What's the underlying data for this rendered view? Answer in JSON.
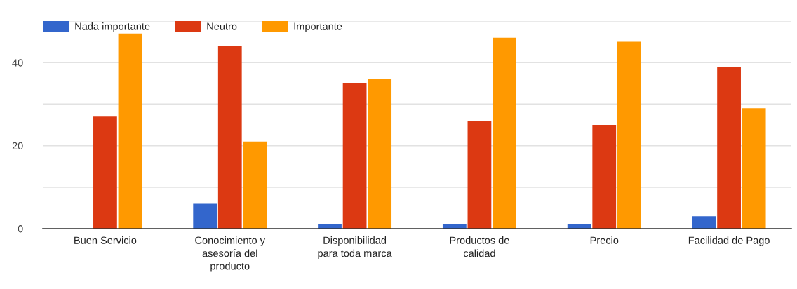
{
  "chart_data": {
    "type": "bar",
    "categories": [
      "Buen Servicio",
      "Conocimiento y\nasesoría del\nproducto",
      "Disponibilidad\npara toda marca",
      "Productos de\ncalidad",
      "Precio",
      "Facilidad de Pago"
    ],
    "series": [
      {
        "name": "Nada importante",
        "color": "#3366cc",
        "values": [
          0,
          6,
          1,
          1,
          1,
          3
        ]
      },
      {
        "name": "Neutro",
        "color": "#dc3912",
        "values": [
          27,
          44,
          35,
          26,
          25,
          39
        ]
      },
      {
        "name": "Importante",
        "color": "#ff9900",
        "values": [
          47,
          21,
          36,
          46,
          45,
          29
        ]
      }
    ],
    "ylim": [
      0,
      50
    ],
    "yticks": [
      0,
      {
        "value": 10,
        "label": null
      },
      20,
      {
        "value": 30,
        "label": null
      },
      40,
      {
        "value": 50,
        "label": null
      }
    ],
    "grid": "y",
    "legend": "top left"
  }
}
